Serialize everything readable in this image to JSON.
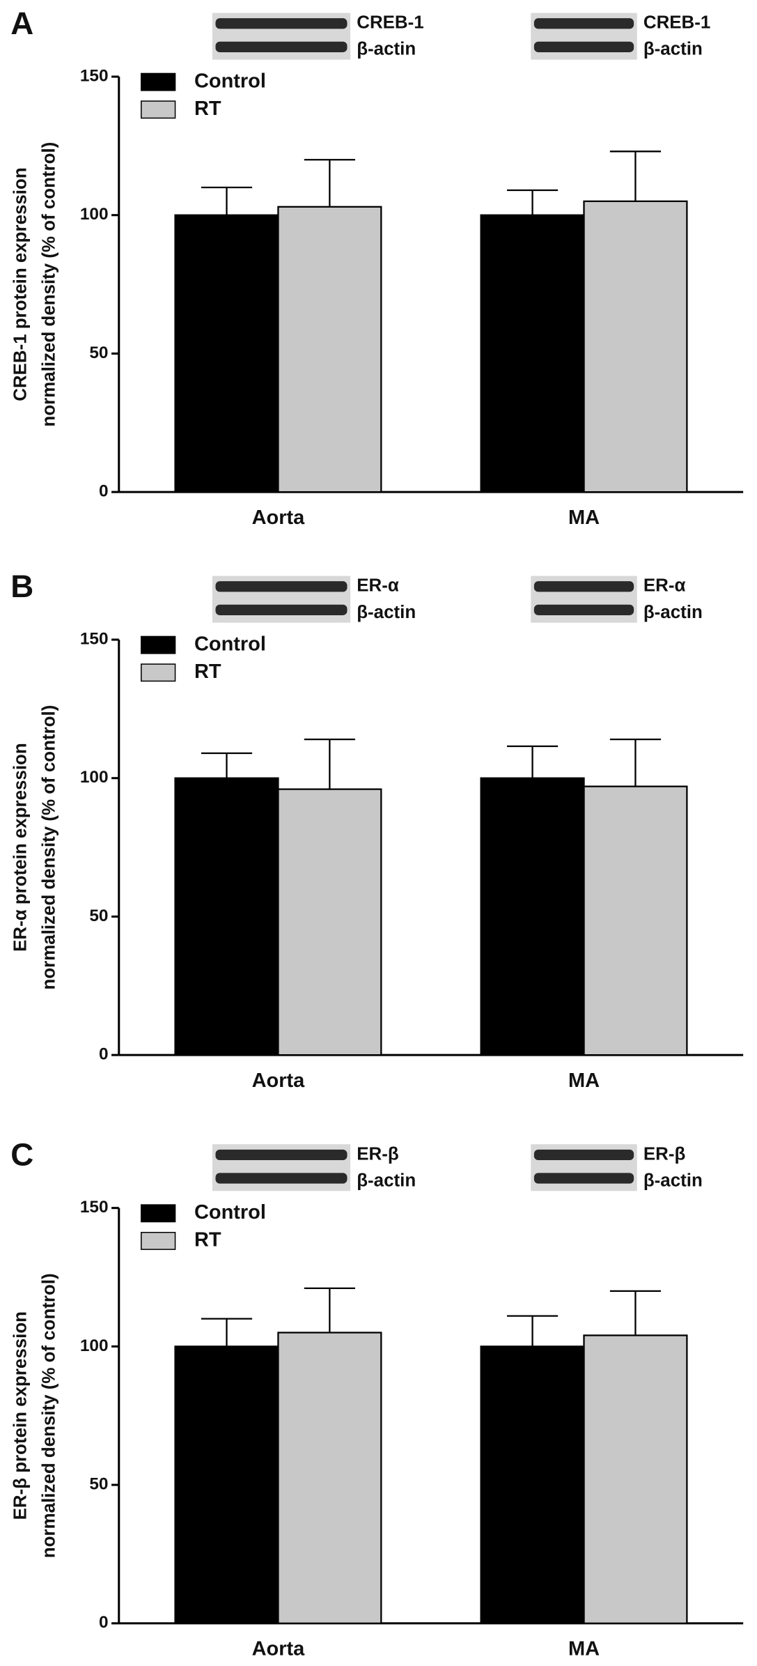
{
  "chart_data": [
    {
      "type": "bar",
      "panel": "A",
      "blot_labels": [
        "CREB-1",
        "β-actin"
      ],
      "y_label": [
        "CREB-1 protein expression",
        "normalized density (% of control)"
      ],
      "categories": [
        "Aorta",
        "MA"
      ],
      "series": [
        {
          "name": "Control",
          "color": "#000000",
          "values": [
            100,
            100
          ],
          "errors": [
            10,
            9
          ]
        },
        {
          "name": "RT",
          "color": "#c8c8c8",
          "values": [
            103,
            105
          ],
          "errors": [
            17,
            18
          ]
        }
      ],
      "ylim": [
        0,
        150
      ],
      "yticks": [
        0,
        50,
        100,
        150
      ]
    },
    {
      "type": "bar",
      "panel": "B",
      "blot_labels": [
        "ER-α",
        "β-actin"
      ],
      "y_label": [
        "ER-α protein expression",
        "normalized density (% of control)"
      ],
      "categories": [
        "Aorta",
        "MA"
      ],
      "series": [
        {
          "name": "Control",
          "color": "#000000",
          "values": [
            100,
            100
          ],
          "errors": [
            9,
            11.5
          ]
        },
        {
          "name": "RT",
          "color": "#c8c8c8",
          "values": [
            96,
            97
          ],
          "errors": [
            18,
            17
          ]
        }
      ],
      "ylim": [
        0,
        150
      ],
      "yticks": [
        0,
        50,
        100,
        150
      ]
    },
    {
      "type": "bar",
      "panel": "C",
      "blot_labels": [
        "ER-β",
        "β-actin"
      ],
      "y_label": [
        "ER-β protein expression",
        "normalized density (% of control)"
      ],
      "categories": [
        "Aorta",
        "MA"
      ],
      "series": [
        {
          "name": "Control",
          "color": "#000000",
          "values": [
            100,
            100
          ],
          "errors": [
            10,
            11
          ]
        },
        {
          "name": "RT",
          "color": "#c8c8c8",
          "values": [
            105,
            104
          ],
          "errors": [
            16,
            16
          ]
        }
      ],
      "ylim": [
        0,
        150
      ],
      "yticks": [
        0,
        50,
        100,
        150
      ]
    }
  ]
}
